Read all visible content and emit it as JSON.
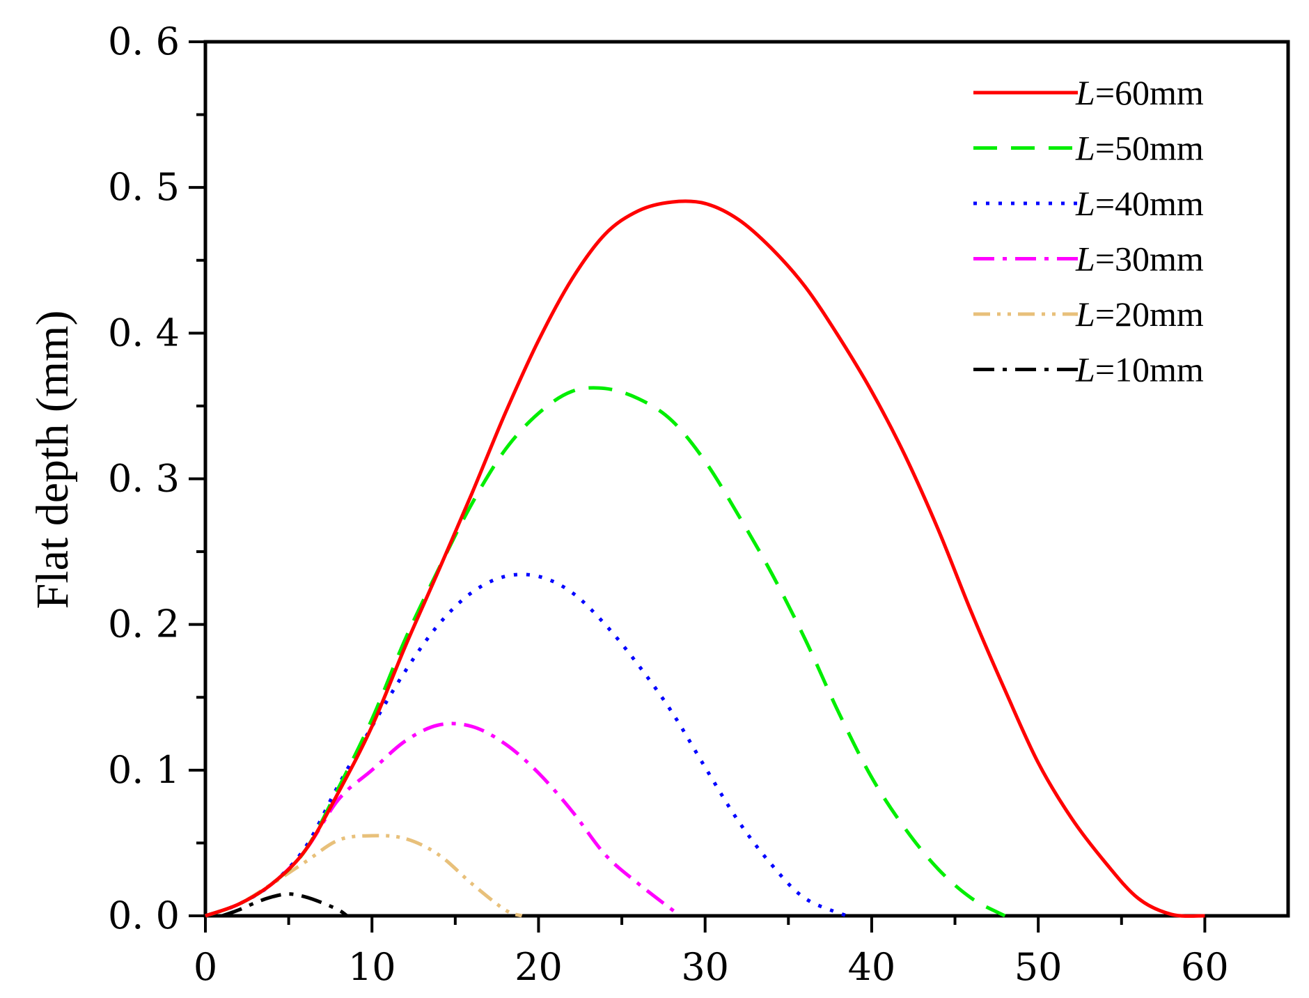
{
  "chart_data": {
    "type": "line",
    "title": "",
    "xlabel": "",
    "ylabel": "Flat depth (mm)",
    "xlim": [
      0,
      65
    ],
    "ylim": [
      0,
      0.6
    ],
    "x_ticks": [
      0,
      10,
      20,
      30,
      40,
      50,
      60
    ],
    "x_tick_labels": [
      "0",
      "10",
      "20",
      "30",
      "40",
      "50",
      "60"
    ],
    "y_ticks": [
      0,
      0.1,
      0.2,
      0.3,
      0.4,
      0.5,
      0.6
    ],
    "y_tick_labels": [
      "0. 0",
      "0. 1",
      "0. 2",
      "0. 3",
      "0. 4",
      "0. 5",
      "0. 6"
    ],
    "grid": false,
    "legend_position": "top-right",
    "series": [
      {
        "name": "L=60mm",
        "name_var": "L",
        "name_rest": "=60mm",
        "color": "#ff0000",
        "style": "solid",
        "x": [
          0,
          2,
          4,
          6,
          8,
          10,
          12,
          14,
          16,
          18,
          20,
          22,
          24,
          26,
          28,
          30,
          32,
          34,
          36,
          38,
          40,
          42,
          44,
          46,
          48,
          50,
          52,
          54,
          56,
          58,
          60
        ],
        "y": [
          0.0,
          0.008,
          0.022,
          0.045,
          0.085,
          0.13,
          0.185,
          0.237,
          0.29,
          0.345,
          0.395,
          0.437,
          0.468,
          0.484,
          0.49,
          0.489,
          0.478,
          0.458,
          0.432,
          0.398,
          0.36,
          0.316,
          0.265,
          0.208,
          0.155,
          0.105,
          0.067,
          0.037,
          0.012,
          0.001,
          0.0
        ]
      },
      {
        "name": "L=50mm",
        "name_var": "L",
        "name_rest": "=50mm",
        "color": "#00ee00",
        "style": "dashed",
        "x": [
          0,
          2,
          4,
          6,
          8,
          10,
          12,
          14,
          16,
          18,
          20,
          22,
          24,
          26,
          28,
          30,
          32,
          34,
          36,
          38,
          40,
          42,
          44,
          46,
          48
        ],
        "y": [
          0.0,
          0.008,
          0.022,
          0.045,
          0.088,
          0.135,
          0.19,
          0.238,
          0.283,
          0.32,
          0.345,
          0.36,
          0.362,
          0.355,
          0.34,
          0.312,
          0.275,
          0.235,
          0.19,
          0.14,
          0.095,
          0.06,
          0.032,
          0.012,
          0.0
        ]
      },
      {
        "name": "L=40mm",
        "name_var": "L",
        "name_rest": "=40mm",
        "color": "#0000ff",
        "style": "dotted",
        "x": [
          0,
          2,
          4,
          6,
          8,
          10,
          12,
          14,
          16,
          18,
          20,
          22,
          24,
          26,
          28,
          30,
          32,
          34,
          36,
          38.5
        ],
        "y": [
          0.0,
          0.008,
          0.022,
          0.047,
          0.09,
          0.13,
          0.168,
          0.2,
          0.222,
          0.233,
          0.233,
          0.222,
          0.2,
          0.172,
          0.14,
          0.102,
          0.065,
          0.035,
          0.012,
          0.0
        ]
      },
      {
        "name": "L=30mm",
        "name_var": "L",
        "name_rest": "=30mm",
        "color": "#ff00ff",
        "style": "dashdot",
        "x": [
          0,
          2,
          4,
          6,
          8,
          10,
          12,
          14,
          16,
          18,
          20,
          22,
          24,
          26,
          28.5
        ],
        "y": [
          0.0,
          0.008,
          0.022,
          0.045,
          0.08,
          0.1,
          0.12,
          0.131,
          0.13,
          0.118,
          0.098,
          0.072,
          0.042,
          0.022,
          0.0
        ]
      },
      {
        "name": "L=20mm",
        "name_var": "L",
        "name_rest": "=20mm",
        "color": "#e8c07a",
        "style": "dashdotdot",
        "x": [
          0,
          2,
          4,
          6,
          8,
          10,
          12,
          14,
          16,
          18,
          19
        ],
        "y": [
          0.0,
          0.008,
          0.022,
          0.037,
          0.052,
          0.055,
          0.053,
          0.042,
          0.022,
          0.004,
          0.0
        ]
      },
      {
        "name": "L=10mm",
        "name_var": "L",
        "name_rest": "=10mm",
        "color": "#000000",
        "style": "dashdot",
        "x": [
          1,
          2,
          3,
          4,
          5,
          6,
          7,
          8,
          8.5
        ],
        "y": [
          0.0,
          0.004,
          0.009,
          0.013,
          0.015,
          0.013,
          0.009,
          0.004,
          0.0
        ]
      }
    ]
  }
}
